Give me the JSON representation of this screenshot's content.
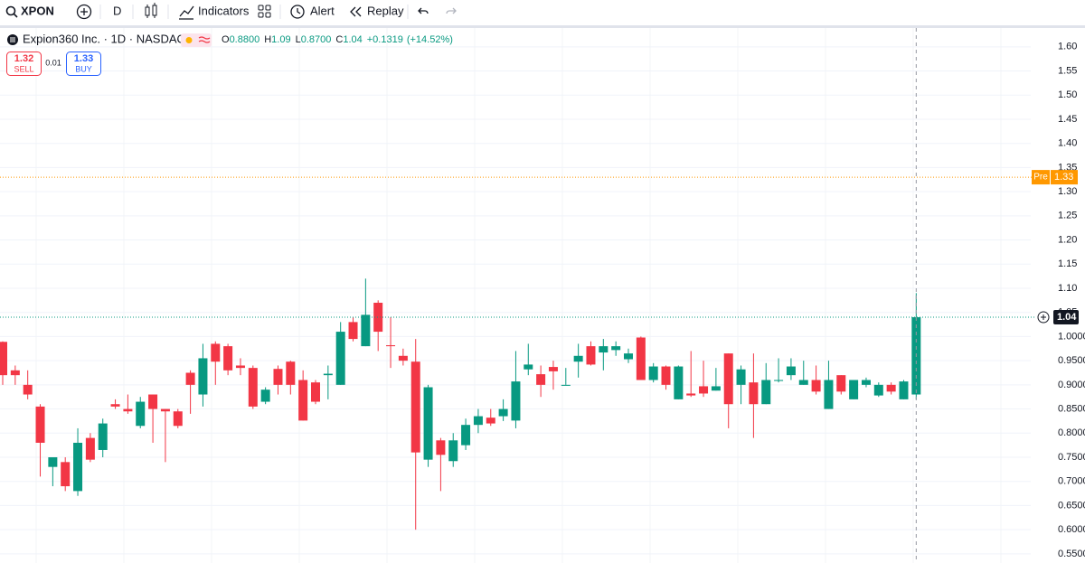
{
  "toolbar": {
    "symbol": "XPON",
    "interval": "D",
    "indicators": "Indicators",
    "alert": "Alert",
    "replay": "Replay"
  },
  "legend": {
    "name": "Expion360 Inc. · 1D · NASDAQ",
    "open_label": "O",
    "open": "0.8800",
    "high_label": "H",
    "high": "1.09",
    "low_label": "L",
    "low": "0.8700",
    "close_label": "C",
    "close": "1.04",
    "change": "+0.1319",
    "change_pct": "(+14.52%)"
  },
  "trade": {
    "sell_price": "1.32",
    "sell_label": "SELL",
    "spread": "0.01",
    "buy_price": "1.33",
    "buy_label": "BUY"
  },
  "chart_data": {
    "type": "candlestick",
    "up_color": "#089981",
    "down_color": "#f23645",
    "open": [
      0.989,
      0.93,
      0.9,
      0.855,
      0.73,
      0.74,
      0.68,
      0.79,
      0.765,
      0.86,
      0.85,
      0.815,
      0.88,
      0.85,
      0.845,
      0.925,
      0.88,
      0.985,
      0.98,
      0.94,
      0.935,
      0.865,
      0.933,
      0.948,
      0.91,
      0.905,
      0.92,
      0.9,
      1.03,
      0.98,
      1.07,
      0.982,
      0.96,
      0.948,
      0.745,
      0.785,
      0.742,
      0.775,
      0.817,
      0.832,
      0.835,
      0.826,
      0.932,
      0.922,
      0.937,
      0.898,
      0.948,
      0.98,
      0.967,
      0.972,
      0.953,
      0.998,
      0.91,
      0.938,
      0.87,
      0.882,
      0.897,
      0.888,
      0.965,
      0.9,
      0.905,
      0.86,
      0.908,
      0.92,
      0.9,
      0.91,
      0.85,
      0.92,
      0.87,
      0.9,
      0.878,
      0.9,
      0.87,
      0.88
    ],
    "high": [
      0.99,
      0.94,
      0.93,
      0.86,
      0.75,
      0.75,
      0.81,
      0.8,
      0.83,
      0.87,
      0.88,
      0.875,
      0.88,
      0.85,
      0.85,
      0.93,
      0.985,
      0.99,
      0.985,
      0.955,
      0.94,
      0.895,
      0.94,
      0.95,
      0.93,
      0.91,
      0.94,
      1.03,
      1.04,
      1.12,
      1.075,
      1.04,
      0.975,
      0.995,
      0.9,
      0.79,
      0.8,
      0.83,
      0.85,
      0.85,
      0.87,
      0.97,
      0.985,
      0.94,
      0.95,
      0.935,
      0.985,
      0.99,
      0.995,
      0.99,
      0.975,
      1.0,
      0.945,
      0.94,
      0.94,
      0.97,
      0.95,
      0.935,
      0.965,
      0.94,
      0.965,
      0.945,
      0.955,
      0.955,
      0.95,
      0.94,
      0.95,
      0.92,
      0.91,
      0.915,
      0.905,
      0.905,
      0.91,
      1.09
    ],
    "low": [
      0.9,
      0.9,
      0.87,
      0.71,
      0.69,
      0.68,
      0.67,
      0.74,
      0.75,
      0.85,
      0.84,
      0.81,
      0.78,
      0.74,
      0.81,
      0.84,
      0.855,
      0.9,
      0.92,
      0.92,
      0.85,
      0.86,
      0.88,
      0.88,
      0.826,
      0.86,
      0.87,
      0.9,
      0.99,
      0.98,
      0.97,
      0.935,
      0.94,
      0.6,
      0.73,
      0.68,
      0.73,
      0.765,
      0.8,
      0.815,
      0.825,
      0.81,
      0.92,
      0.875,
      0.89,
      0.9,
      0.915,
      0.94,
      0.93,
      0.96,
      0.945,
      0.91,
      0.905,
      0.89,
      0.87,
      0.875,
      0.875,
      0.888,
      0.81,
      0.86,
      0.79,
      0.86,
      0.905,
      0.91,
      0.9,
      0.88,
      0.85,
      0.88,
      0.87,
      0.895,
      0.875,
      0.88,
      0.87,
      0.87
    ],
    "close": [
      0.92,
      0.92,
      0.88,
      0.78,
      0.75,
      0.69,
      0.78,
      0.745,
      0.82,
      0.855,
      0.845,
      0.865,
      0.85,
      0.845,
      0.815,
      0.9,
      0.955,
      0.948,
      0.93,
      0.935,
      0.855,
      0.89,
      0.9,
      0.9,
      0.826,
      0.865,
      0.923,
      1.01,
      0.995,
      1.045,
      1.01,
      0.98,
      0.95,
      0.76,
      0.895,
      0.755,
      0.785,
      0.817,
      0.835,
      0.82,
      0.85,
      0.907,
      0.942,
      0.9,
      0.928,
      0.9,
      0.96,
      0.942,
      0.98,
      0.98,
      0.965,
      0.91,
      0.938,
      0.9,
      0.938,
      0.878,
      0.882,
      0.897,
      0.86,
      0.932,
      0.86,
      0.91,
      0.91,
      0.938,
      0.91,
      0.886,
      0.91,
      0.886,
      0.91,
      0.91,
      0.9,
      0.886,
      0.907,
      1.04
    ],
    "ylim": [
      0.531,
      1.639
    ],
    "yticks": [
      {
        "value": 1.6,
        "label": "1.60"
      },
      {
        "value": 1.55,
        "label": "1.55"
      },
      {
        "value": 1.5,
        "label": "1.50"
      },
      {
        "value": 1.45,
        "label": "1.45"
      },
      {
        "value": 1.4,
        "label": "1.40"
      },
      {
        "value": 1.35,
        "label": "1.35"
      },
      {
        "value": 1.3,
        "label": "1.30"
      },
      {
        "value": 1.25,
        "label": "1.25"
      },
      {
        "value": 1.2,
        "label": "1.20"
      },
      {
        "value": 1.15,
        "label": "1.15"
      },
      {
        "value": 1.1,
        "label": "1.10"
      },
      {
        "value": 1.05,
        "label": "1.05"
      },
      {
        "value": 1.0,
        "label": "1.0000"
      },
      {
        "value": 0.95,
        "label": "0.9500"
      },
      {
        "value": 0.9,
        "label": "0.9000"
      },
      {
        "value": 0.85,
        "label": "0.8500"
      },
      {
        "value": 0.8,
        "label": "0.8000"
      },
      {
        "value": 0.75,
        "label": "0.7500"
      },
      {
        "value": 0.7,
        "label": "0.7000"
      },
      {
        "value": 0.65,
        "label": "0.6500"
      },
      {
        "value": 0.6,
        "label": "0.6000"
      },
      {
        "value": 0.55,
        "label": "0.5500"
      }
    ],
    "grid": true,
    "last_price": 1.04,
    "last_price_color": "#089981",
    "premarket": {
      "label": "Pre",
      "value": 1.33,
      "color": "#ff9800"
    }
  }
}
